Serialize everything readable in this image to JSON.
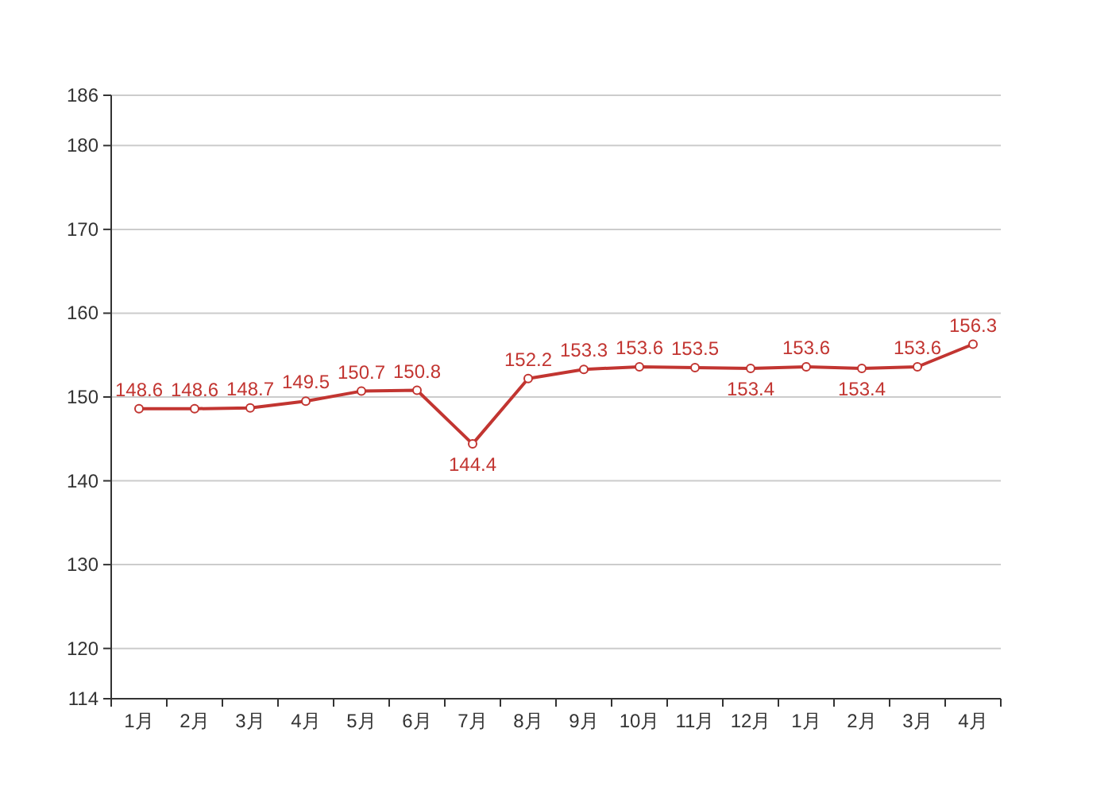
{
  "chart_data": {
    "type": "line",
    "categories": [
      "1月",
      "2月",
      "3月",
      "4月",
      "5月",
      "6月",
      "7月",
      "8月",
      "9月",
      "10月",
      "11月",
      "12月",
      "1月",
      "2月",
      "3月",
      "4月"
    ],
    "values": [
      148.6,
      148.6,
      148.7,
      149.5,
      150.7,
      150.8,
      144.4,
      152.2,
      153.3,
      153.6,
      153.5,
      153.4,
      153.6,
      153.4,
      153.6,
      156.3
    ],
    "color": "#c23531",
    "ylim": [
      114,
      186
    ],
    "yticks": [
      114,
      120,
      130,
      140,
      150,
      160,
      170,
      180,
      186
    ],
    "grid": "y",
    "data_labels": true,
    "marker": "circle"
  }
}
